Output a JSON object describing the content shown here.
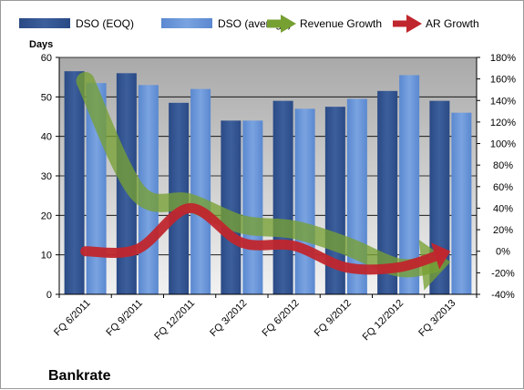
{
  "chart_data": {
    "type": "bar",
    "company": "Bankrate",
    "categories": [
      "FQ 6/2011",
      "FQ 9/2011",
      "FQ 12/2011",
      "FQ 3/2012",
      "FQ 6/2012",
      "FQ 9/2012",
      "FQ 12/2012",
      "FQ 3/2013"
    ],
    "ylabel": "Days",
    "ylim": [
      0,
      60
    ],
    "yticks": [
      "0",
      "10",
      "20",
      "30",
      "40",
      "50",
      "60"
    ],
    "y2lim": [
      -40,
      180
    ],
    "y2ticks": [
      "-40%",
      "-20%",
      "0%",
      "20%",
      "40%",
      "60%",
      "80%",
      "100%",
      "120%",
      "140%",
      "160%",
      "180%"
    ],
    "legend_position": "top",
    "grid": true,
    "series": [
      {
        "name": "DSO (EOQ)",
        "type": "bar",
        "axis": "left",
        "color": "#2f4f8a",
        "values": [
          56.5,
          56,
          48.5,
          44,
          49,
          47.5,
          51.5,
          49
        ]
      },
      {
        "name": "DSO (average)",
        "type": "bar",
        "axis": "left",
        "color": "#5f8ed6",
        "values": [
          53.5,
          53,
          52,
          44,
          47,
          49.5,
          55.5,
          46
        ]
      },
      {
        "name": "Revenue Growth",
        "type": "line",
        "axis": "right",
        "unit": "%",
        "color": "#77a033",
        "values": [
          158,
          55,
          45,
          25,
          20,
          5,
          -15,
          -10
        ]
      },
      {
        "name": "AR Growth",
        "type": "line",
        "axis": "right",
        "unit": "%",
        "color": "#c0262d",
        "values": [
          0,
          2,
          40,
          8,
          5,
          -15,
          -15,
          0
        ]
      }
    ]
  }
}
